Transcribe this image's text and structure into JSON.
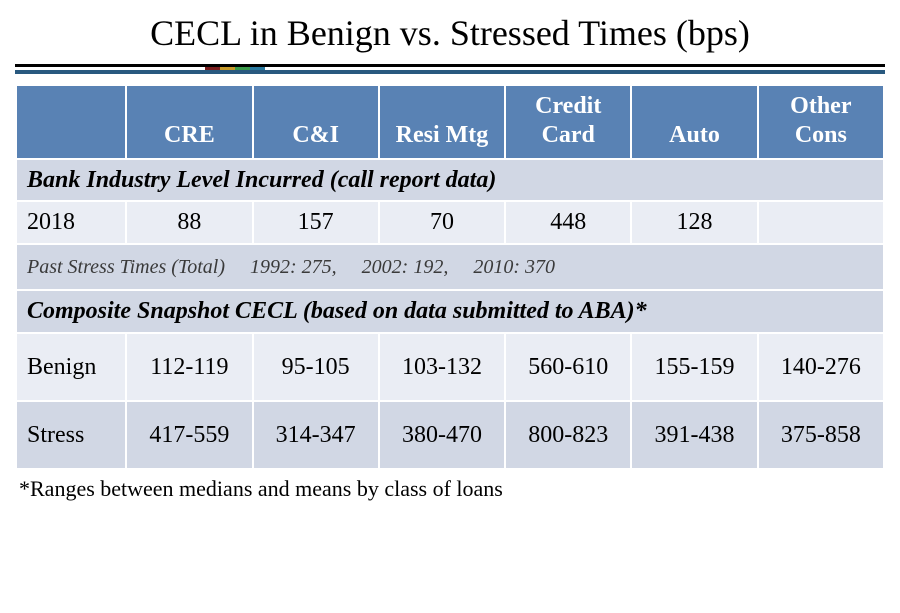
{
  "title": "CECL in Benign vs. Stressed Times (bps)",
  "accent_colors": [
    "#7a1d1d",
    "#c79a2a",
    "#3a9a4a",
    "#2a7aa0"
  ],
  "divider_main_color": "#29597f",
  "header_bg": "#5982b4",
  "header_color": "#ffffff",
  "row_light_bg": "#eaedf4",
  "row_dark_bg": "#d1d7e4",
  "columns": [
    "",
    "CRE",
    "C&I",
    "Resi Mtg",
    "Credit Card",
    "Auto",
    "Other Cons"
  ],
  "section1": {
    "label": "Bank Industry Level Incurred (call report data)",
    "row": {
      "label": "2018",
      "values": [
        "88",
        "157",
        "70",
        "448",
        "128",
        ""
      ]
    }
  },
  "past_stress_note": "Past Stress Times (Total)  1992: 275,  2002: 192,  2010: 370",
  "section2": {
    "label": "Composite Snapshot CECL (based on data submitted to ABA)*",
    "rows": [
      {
        "label": "Benign",
        "values": [
          "112-119",
          "95-105",
          "103-132",
          "560-610",
          "155-159",
          "140-276"
        ]
      },
      {
        "label": "Stress",
        "values": [
          "417-559",
          "314-347",
          "380-470",
          "800-823",
          "391-438",
          "375-858"
        ]
      }
    ]
  },
  "footnote": "*Ranges between medians and means by class of loans"
}
